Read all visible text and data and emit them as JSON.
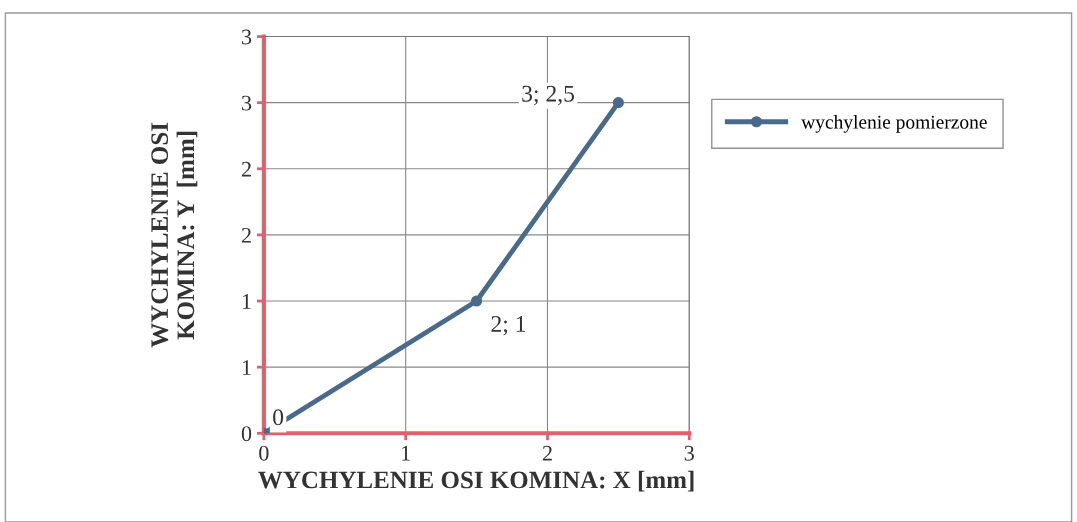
{
  "chart_data": {
    "type": "line",
    "xlabel": "WYCHYLENIE OSI KOMINA: X [mm]",
    "ylabel": "WYCHYLENIE OSI\nKOMINA: Y  [mm]",
    "x": [
      0,
      1.5,
      2.5
    ],
    "series": [
      {
        "name": "wychylenie pomierzone",
        "color": "#4a6a8c",
        "values": [
          0,
          1,
          2.5
        ],
        "value_labels": [
          "0",
          "2; 1",
          "3; 2,5"
        ]
      }
    ],
    "xlim": [
      0,
      3
    ],
    "xticks": [
      0,
      1,
      2,
      3
    ],
    "ylim": [
      0,
      3
    ],
    "yticks": [
      0,
      {
        "value": 0.5,
        "label": "1"
      },
      1,
      {
        "value": 1.5,
        "label": "2"
      },
      2,
      {
        "value": 2.5,
        "label": "3"
      },
      3
    ],
    "grid": true,
    "legend": "right",
    "marker": "circle",
    "line_style": "solid"
  }
}
